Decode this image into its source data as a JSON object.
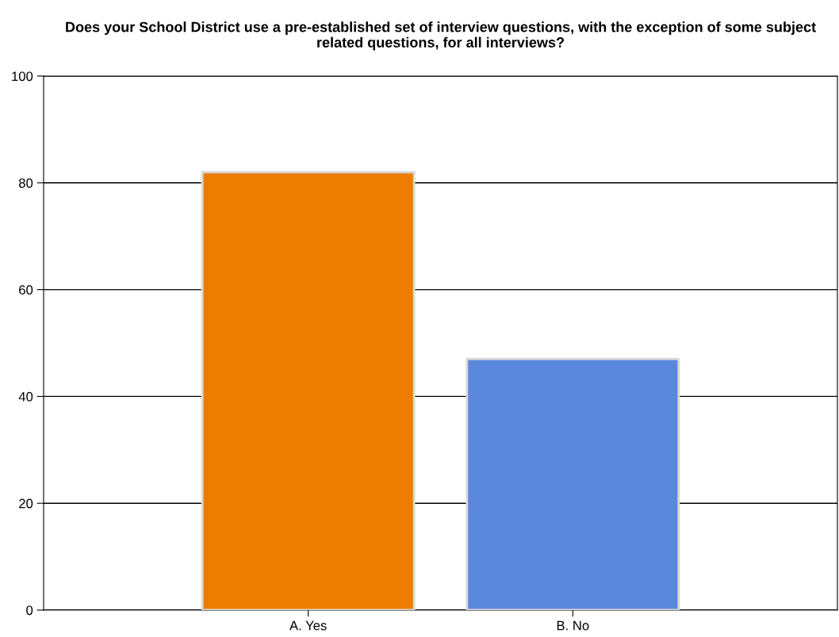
{
  "chart_data": {
    "type": "bar",
    "title": "Does your School District use a pre-established set of interview questions, with the exception of some subject related questions, for all interviews?",
    "categories": [
      "A. Yes",
      "B. No"
    ],
    "values": [
      82,
      47
    ],
    "colors": [
      "#ec7d00",
      "#5b88dd"
    ],
    "ylim": [
      0,
      100
    ],
    "yticks": [
      0,
      20,
      40,
      60,
      80,
      100
    ],
    "grid": "y"
  }
}
